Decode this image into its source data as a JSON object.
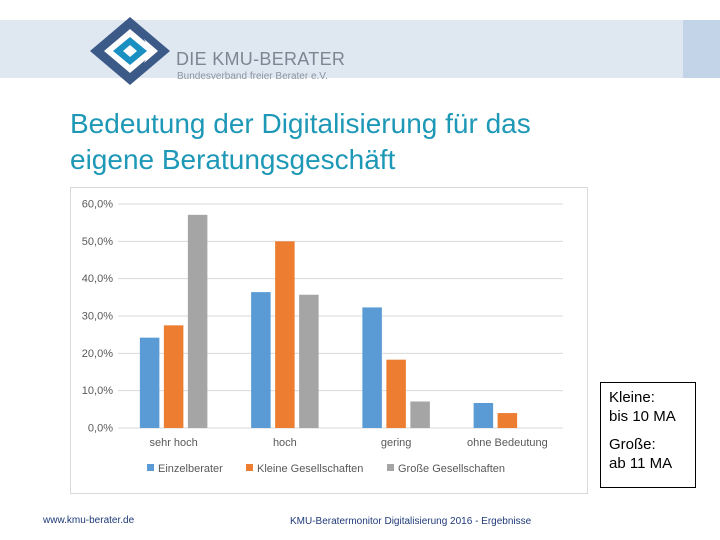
{
  "header": {
    "logo_title": "DIE KMU-BERATER",
    "logo_subtitle": "Bundesverband freier Berater e.V."
  },
  "slide": {
    "title_line1": "Bedeutung der Digitalisierung für das",
    "title_line2": "eigene Beratungsgeschäft"
  },
  "note": {
    "line1": "Kleine:",
    "line2": "bis 10 MA",
    "line3": "Große:",
    "line4": "ab 11 MA"
  },
  "footer": {
    "url": "www.kmu-berater.de",
    "caption": "KMU-Beratermonitor Digitalisierung 2016 - Ergebnisse"
  },
  "colors": {
    "title": "#1e98b7",
    "band": "#dfe7f1",
    "logo_blue": "#1a8fc2",
    "logo_dark": "#3c5a87"
  },
  "chart_data": {
    "type": "bar",
    "categories": [
      "sehr hoch",
      "hoch",
      "gering",
      "ohne Bedeutung"
    ],
    "series": [
      {
        "name": "Einzelberater",
        "color": "#5b9bd5",
        "values": [
          24.2,
          36.4,
          32.3,
          6.7
        ]
      },
      {
        "name": "Kleine Gesellschaften",
        "color": "#ed7d31",
        "values": [
          27.5,
          50.0,
          18.3,
          4.0
        ]
      },
      {
        "name": "Große Gesellschaften",
        "color": "#a5a5a5",
        "values": [
          57.1,
          35.7,
          7.1,
          0.0
        ]
      }
    ],
    "y_ticks": [
      "0,0%",
      "10,0%",
      "20,0%",
      "30,0%",
      "40,0%",
      "50,0%",
      "60,0%"
    ],
    "ylim": [
      0,
      60
    ],
    "grid": true,
    "legend": "bottom"
  }
}
